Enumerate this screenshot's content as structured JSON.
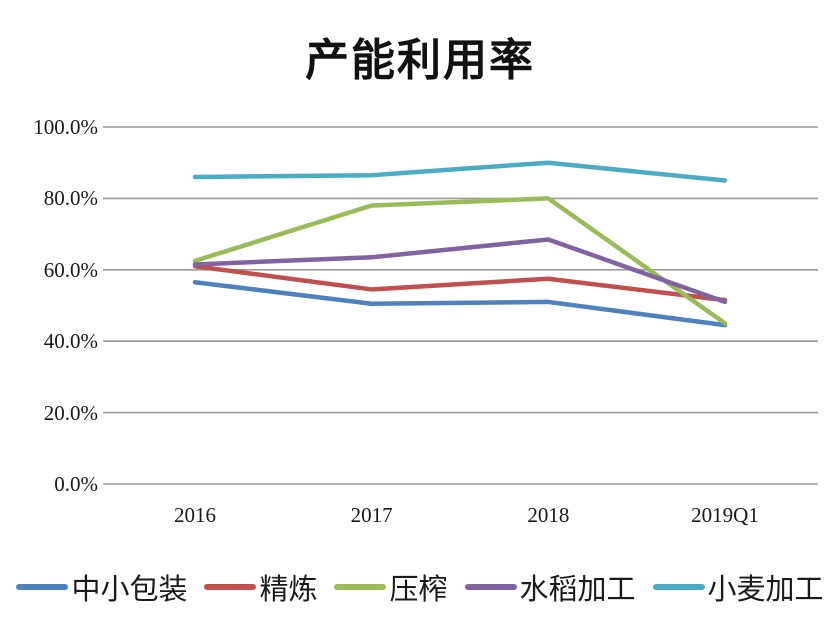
{
  "chart_data": {
    "type": "line",
    "title": "产能利用率",
    "categories": [
      "2016",
      "2017",
      "2018",
      "2019Q1"
    ],
    "series": [
      {
        "name": "中小包装",
        "color": "#4F81BD",
        "values": [
          56.5,
          50.5,
          51.0,
          44.5
        ]
      },
      {
        "name": "精炼",
        "color": "#C0504D",
        "values": [
          61.0,
          54.5,
          57.5,
          51.5
        ]
      },
      {
        "name": "压榨",
        "color": "#9BBB59",
        "values": [
          62.5,
          78.0,
          80.0,
          45.0
        ]
      },
      {
        "name": "水稻加工",
        "color": "#8064A2",
        "values": [
          61.5,
          63.5,
          68.5,
          51.0
        ]
      },
      {
        "name": "小麦加工",
        "color": "#4BACC6",
        "values": [
          86.0,
          86.5,
          90.0,
          85.0
        ]
      }
    ],
    "ylim": [
      0,
      100
    ],
    "yticks": [
      {
        "label": "100.0%",
        "value": 100
      },
      {
        "label": "80.0%",
        "value": 80
      },
      {
        "label": "60.0%",
        "value": 60
      },
      {
        "label": "40.0%",
        "value": 40
      },
      {
        "label": "20.0%",
        "value": 20
      },
      {
        "label": "0.0%",
        "value": 0
      }
    ],
    "grid": true,
    "gridline_color": "#9B9B9B",
    "legend_position": "bottom"
  }
}
